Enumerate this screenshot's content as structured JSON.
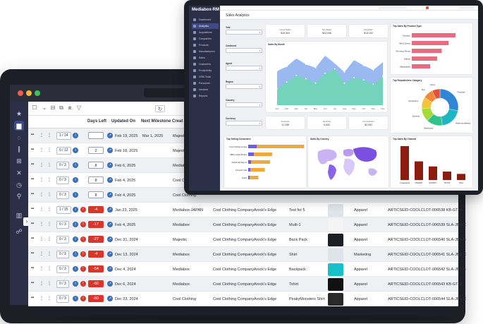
{
  "back_app": {
    "columns": {
      "days_left": "Days Left",
      "updated_on": "Updated On",
      "next_milestone": "Next Milestone",
      "created": "Creat"
    },
    "rows": [
      {
        "pager": "1 / 14",
        "days": "",
        "days_style": "neutral",
        "updated": "Feb 19, 2025",
        "milestone": "Mar 1, 2025",
        "col5": "Majestic",
        "col6": "",
        "col7": "",
        "col8": "",
        "col9": "",
        "col10": ""
      },
      {
        "pager": "0 / 12",
        "days": "2",
        "days_style": "neutral",
        "updated": "Feb 18, 2025",
        "milestone": "",
        "col5": "Majestic",
        "col6": "",
        "col7": "",
        "col8": "",
        "col9": "",
        "col10": ""
      },
      {
        "pager": "0 / 3",
        "days": "8",
        "days_style": "neutral",
        "updated": "Feb 6, 2025",
        "milestone": "",
        "col5": "Mediabox",
        "col6": "",
        "col7": "",
        "col8": "",
        "col9": "",
        "col10": ""
      },
      {
        "pager": "0 / 3",
        "days": "8",
        "days_style": "neutral",
        "updated": "Feb 4, 2025",
        "milestone": "",
        "col5": "Cool Clo",
        "col6": "",
        "col7": "",
        "col8": "",
        "col9": "",
        "col10": ""
      },
      {
        "pager": "0 / 3",
        "days": "8",
        "days_style": "neutral",
        "updated": "Feb 4, 2025",
        "milestone": "",
        "col5": "Cool Clothing",
        "col6": "",
        "col7": "",
        "col8": "",
        "col9": "",
        "col10": ""
      },
      {
        "pager": "1 / 15",
        "days": "-4",
        "days_style": "red",
        "updated": "Jan 23, 2025",
        "milestone": "",
        "col5": "Mediabox-JAPAN",
        "col6": "Cool Clothing Company",
        "col7": "Arock's Edge",
        "col8": "Test for 5",
        "col9": "Apparel",
        "col10": "ARTICSEID-COOLCLOT-006538  KB-GTJA"
      },
      {
        "pager": "0 / 3",
        "days": "-17",
        "days_style": "red",
        "updated": "Feb 4, 2025",
        "milestone": "",
        "col5": "Mediabox",
        "col6": "Cool Clothing Company",
        "col7": "Arock's Edge",
        "col8": "Multi-1",
        "col9": "Apparel",
        "col10": "ARTICSEID-COOLCLOT-006539  SLA-JBR-C"
      },
      {
        "pager": "0 / 3",
        "days": "-27",
        "days_style": "red",
        "updated": "Dec 31, 2024",
        "milestone": "",
        "col5": "Majestic",
        "col6": "Cool Clothing Company",
        "col7": "Arock's Edge",
        "col8": "Back Pack",
        "col9": "Apparel",
        "col10": "ARTICSEID-COOLCLOT-006540  SLA-JBR-B"
      },
      {
        "pager": "0 / 3",
        "days": "-4",
        "days_style": "red",
        "updated": "Dec 13, 2024",
        "milestone": "",
        "col5": "Mediabox",
        "col6": "Cool Clothing Company",
        "col7": "Arock's Edge",
        "col8": "Shirt",
        "col9": "Marketing",
        "col10": "ARTICSEID-COOLCLOT-006541  SLA-JBR-C"
      },
      {
        "pager": "0 / 3",
        "days": "-54",
        "days_style": "red",
        "updated": "Dec 4, 2024",
        "milestone": "",
        "col5": "Mediabox",
        "col6": "Cool Clothing Company",
        "col7": "Arock's Edge",
        "col8": "Backpack",
        "col9": "Apparel",
        "col10": "ARTICSEID-COOLCLOT-006542  SLA-JBR-B"
      },
      {
        "pager": "0 / 3",
        "days": "-60",
        "days_style": "red",
        "updated": "Dec 6, 2024",
        "milestone": "",
        "col5": "Mediabox",
        "col6": "Cool Clothing Company",
        "col7": "Arock's Edge",
        "col8": "Tshirt",
        "col9": "Apparel",
        "col10": "ARTICSEID-COOLCLOT-006543  KB-GTJA"
      },
      {
        "pager": "0 / 3",
        "days": "-60",
        "days_style": "red",
        "updated": "Dec 23, 2024",
        "milestone": "",
        "col5": "Cool Clothing",
        "col6": "Cool Clothing Company",
        "col7": "Arock's Edge",
        "col8": "PeakyMonsters Shirt",
        "col9": "Apparel",
        "col10": "ARTICSEID-COOLCLOT-006544  SLA-JBR-C"
      }
    ]
  },
  "front_app": {
    "logo": "Mediabox-RM",
    "page_title": "Sales Analytics",
    "sidebar_items": [
      "Dashboard",
      "Analytics",
      "Acquisitions",
      "Companies",
      "Products",
      "Manufacturers",
      "Sales",
      "Customers",
      "Productivity",
      "CRM Tools",
      "Personnel",
      "Invoices",
      "Reports"
    ],
    "filters": [
      "Year",
      "Continent",
      "Agent",
      "Region",
      "Country",
      "Currency"
    ],
    "kpis_top": [
      {
        "label": "Gross Sales",
        "value": "$19,303"
      },
      {
        "label": "Net Sales",
        "value": "$22,036"
      },
      {
        "label": "Royalties",
        "value": "$13,102"
      }
    ],
    "kpis_bottom": [
      {
        "label": "Accounts",
        "value": "12,338"
      },
      {
        "label": "Quantity",
        "value": "6,532"
      },
      {
        "label": "Commission",
        "value": "$2,002"
      }
    ],
    "card_titles": {
      "by_month": "Sales By Month",
      "by_product_type": "Top Sales By Product Type",
      "by_category": "Top Republishers Category",
      "top_customers": "Top Selling Customers",
      "by_country": "Sales By Country",
      "by_channel": "Top Sales By Channel"
    }
  },
  "chart_data": [
    {
      "type": "area",
      "title": "Sales By Month",
      "x": [
        "Jan",
        "Feb",
        "Mar",
        "Apr",
        "May",
        "Jun",
        "Jul",
        "Aug",
        "Sep",
        "Oct",
        "Nov",
        "Dec"
      ],
      "series": [
        {
          "values": [
            62,
            70,
            85,
            74,
            68,
            90,
            76,
            60,
            82,
            72,
            64,
            78
          ]
        },
        {
          "values": [
            30,
            42,
            54,
            48,
            40,
            58,
            66,
            40,
            50,
            46,
            38,
            52
          ]
        }
      ],
      "colors": [
        "#8fb1f0",
        "#6fd6b5"
      ],
      "ylim": [
        0,
        100
      ]
    },
    {
      "type": "bar",
      "title": "Top Sales By Product Type",
      "categories": [
        "Outdoor",
        "Tall & Dress",
        "Running Shoes",
        "Ellipse",
        "Backpacks"
      ],
      "values": [
        95,
        80,
        65,
        55,
        40
      ],
      "color": "#e86b7f"
    },
    {
      "type": "pie",
      "title": "Top Republishers Category",
      "categories": [
        "Footwear",
        "Health and Beauty",
        "Electronics",
        "Eyewear",
        "Accessories",
        "Toys",
        "Home"
      ],
      "values": [
        28,
        20,
        14,
        12,
        10,
        9,
        7
      ],
      "colors": [
        "#2f86d6",
        "#1fb6c4",
        "#2fc28b",
        "#a6d93a",
        "#f2c43b",
        "#f08a3a",
        "#e64f3a"
      ]
    },
    {
      "type": "bar",
      "title": "Top Selling Customers",
      "orientation": "horizontal",
      "categories": [
        "Cool Clothing Compa",
        "MBS Limited Produc",
        "Global Gaming Inc",
        "Comtech Ltda",
        "Nobel"
      ],
      "series": [
        {
          "values": [
            1.2,
            0.8,
            0.4,
            0.3,
            0.2
          ],
          "color": "#6c5ce7"
        },
        {
          "values": [
            6.5,
            2.5,
            2.6,
            2.0,
            1.2
          ],
          "color": "#f2a93b"
        }
      ],
      "xlim": [
        0,
        7
      ]
    },
    {
      "type": "bar",
      "title": "Top Sales By Channel",
      "categories": [
        "Unassigned",
        "MAGENT",
        "SHOPIFY",
        "TIKTOK",
        "Other"
      ],
      "values": [
        100,
        55,
        40,
        25,
        18
      ],
      "color": "#8b1c0e"
    }
  ]
}
